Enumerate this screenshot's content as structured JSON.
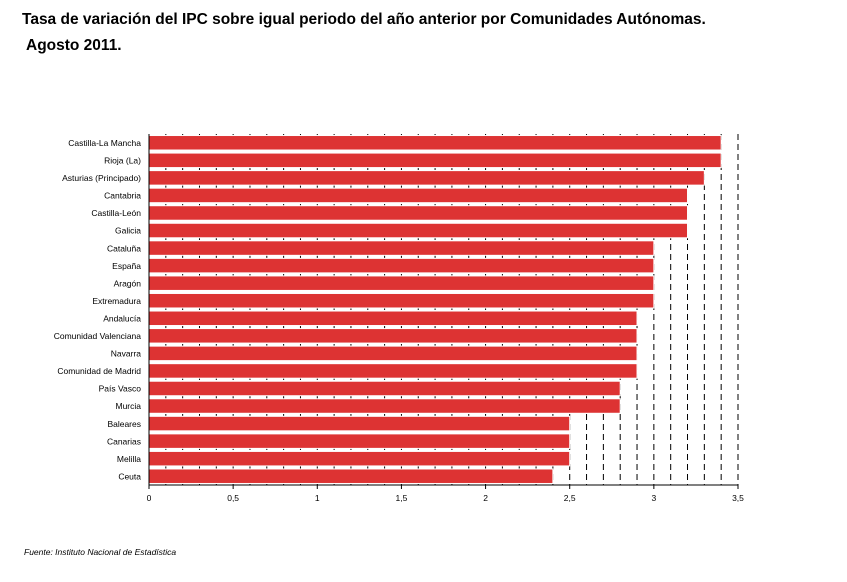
{
  "title_line1": "Tasa de variación del IPC sobre igual periodo del año anterior por Comunidades Autónomas.",
  "title_line2": "Agosto 2011.",
  "footer": "Fuente: Instituto Nacional de Estadística",
  "colors": {
    "bar": "#dd3333",
    "bar_border": "#ffffff",
    "axis": "#000000"
  },
  "chart_data": {
    "type": "bar",
    "orientation": "horizontal",
    "categories": [
      "Castilla-La Mancha",
      "Rioja (La)",
      "Asturias (Principado)",
      "Cantabria",
      "Castilla-León",
      "Galicia",
      "Cataluña",
      "España",
      "Aragón",
      "Extremadura",
      "Andalucía",
      "Comunidad Valenciana",
      "Navarra",
      "Comunidad de Madrid",
      "País Vasco",
      "Murcia",
      "Baleares",
      "Canarias",
      "Melilla",
      "Ceuta"
    ],
    "values": [
      3.4,
      3.4,
      3.3,
      3.2,
      3.2,
      3.2,
      3.0,
      3.0,
      3.0,
      3.0,
      2.9,
      2.9,
      2.9,
      2.9,
      2.8,
      2.8,
      2.5,
      2.5,
      2.5,
      2.4
    ],
    "xlim": [
      0,
      3.5
    ],
    "xticks": [
      0,
      0.5,
      1,
      1.5,
      2,
      2.5,
      3,
      3.5
    ],
    "xtick_labels": [
      "0",
      "0,5",
      "1",
      "1,5",
      "2",
      "2,5",
      "3",
      "3,5"
    ],
    "grid": "vertical dashed",
    "xlabel": "",
    "ylabel": ""
  }
}
